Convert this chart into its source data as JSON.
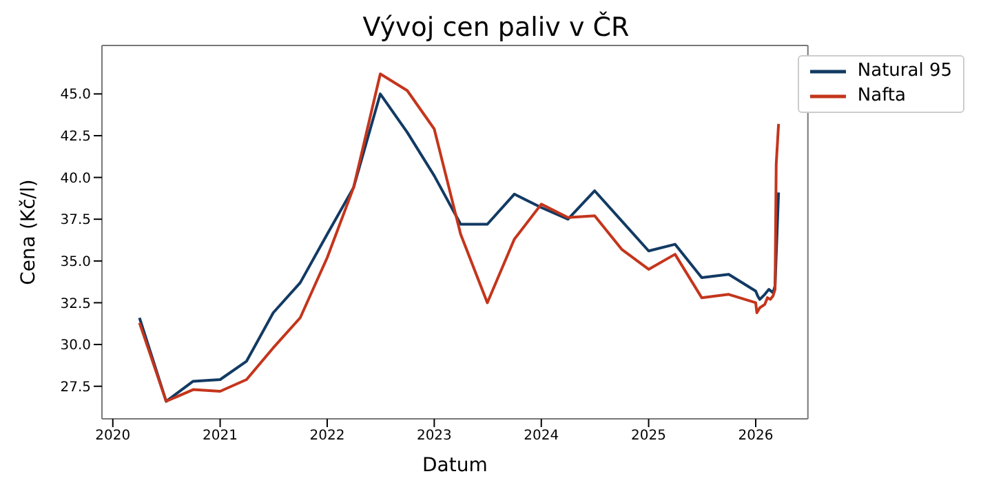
{
  "chart_data": {
    "type": "line",
    "title": "Vývoj cen paliv v ČR",
    "xlabel": "Datum",
    "ylabel": "Cena (Kč/l)",
    "xlim": [
      "2019-11-25",
      "2026-06-28"
    ],
    "xticks": [
      "2020",
      "2021",
      "2022",
      "2023",
      "2024",
      "2025",
      "2026"
    ],
    "ylim": [
      25.55,
      47.9
    ],
    "yticks": [
      {
        "value": 27.5,
        "label": "27.5"
      },
      {
        "value": 30,
        "label": "30.0"
      },
      {
        "value": 32.5,
        "label": "32.5"
      },
      {
        "value": 35,
        "label": "35.0"
      },
      {
        "value": 37.5,
        "label": "37.5"
      },
      {
        "value": 40,
        "label": "40.0"
      },
      {
        "value": 42.5,
        "label": "42.5"
      },
      {
        "value": 45,
        "label": "45.0"
      }
    ],
    "grid": false,
    "legend": "top right",
    "marker": "none",
    "line_style": "solid",
    "series": [
      {
        "name": "Natural 95",
        "color": "#123a63",
        "x": [
          "2020-04-01",
          "2020-07-01",
          "2020-10-01",
          "2021-01-01",
          "2021-04-01",
          "2021-07-01",
          "2021-10-01",
          "2022-01-01",
          "2022-04-01",
          "2022-07-01",
          "2022-10-01",
          "2023-01-01",
          "2023-04-01",
          "2023-07-01",
          "2023-10-01",
          "2024-01-01",
          "2024-04-01",
          "2024-07-01",
          "2024-10-01",
          "2025-01-01",
          "2025-04-01",
          "2025-07-01",
          "2025-10-01",
          "2026-01-01",
          "2026-01-08",
          "2026-01-15",
          "2026-02-01",
          "2026-02-15",
          "2026-03-01",
          "2026-03-08",
          "2026-03-20"
        ],
        "values": [
          31.6,
          26.6,
          27.8,
          27.9,
          29.0,
          31.9,
          33.7,
          36.6,
          39.4,
          45.0,
          42.7,
          40.1,
          37.2,
          37.2,
          39.0,
          38.2,
          37.5,
          39.2,
          37.4,
          35.6,
          36.0,
          34.0,
          34.2,
          33.2,
          32.9,
          32.7,
          33.0,
          33.3,
          33.1,
          33.5,
          39.1
        ]
      },
      {
        "name": "Nafta",
        "color": "#c4351c",
        "x": [
          "2020-04-01",
          "2020-07-01",
          "2020-10-01",
          "2021-01-01",
          "2021-04-01",
          "2021-07-01",
          "2021-10-01",
          "2022-01-01",
          "2022-04-01",
          "2022-07-01",
          "2022-10-01",
          "2023-01-01",
          "2023-04-01",
          "2023-07-01",
          "2023-10-01",
          "2024-01-01",
          "2024-04-01",
          "2024-07-01",
          "2024-10-01",
          "2025-01-01",
          "2025-04-01",
          "2025-07-01",
          "2025-10-01",
          "2026-01-01",
          "2026-01-05",
          "2026-01-15",
          "2026-02-01",
          "2026-02-10",
          "2026-02-20",
          "2026-03-01",
          "2026-03-08",
          "2026-03-12",
          "2026-03-20"
        ],
        "values": [
          31.3,
          26.6,
          27.3,
          27.2,
          27.9,
          29.8,
          31.6,
          35.2,
          39.4,
          46.2,
          45.2,
          42.9,
          36.6,
          32.5,
          36.3,
          38.4,
          37.6,
          37.7,
          35.7,
          34.5,
          35.4,
          32.8,
          33.0,
          32.5,
          31.9,
          32.2,
          32.4,
          32.8,
          32.7,
          32.9,
          33.3,
          40.8,
          43.2
        ]
      }
    ]
  }
}
